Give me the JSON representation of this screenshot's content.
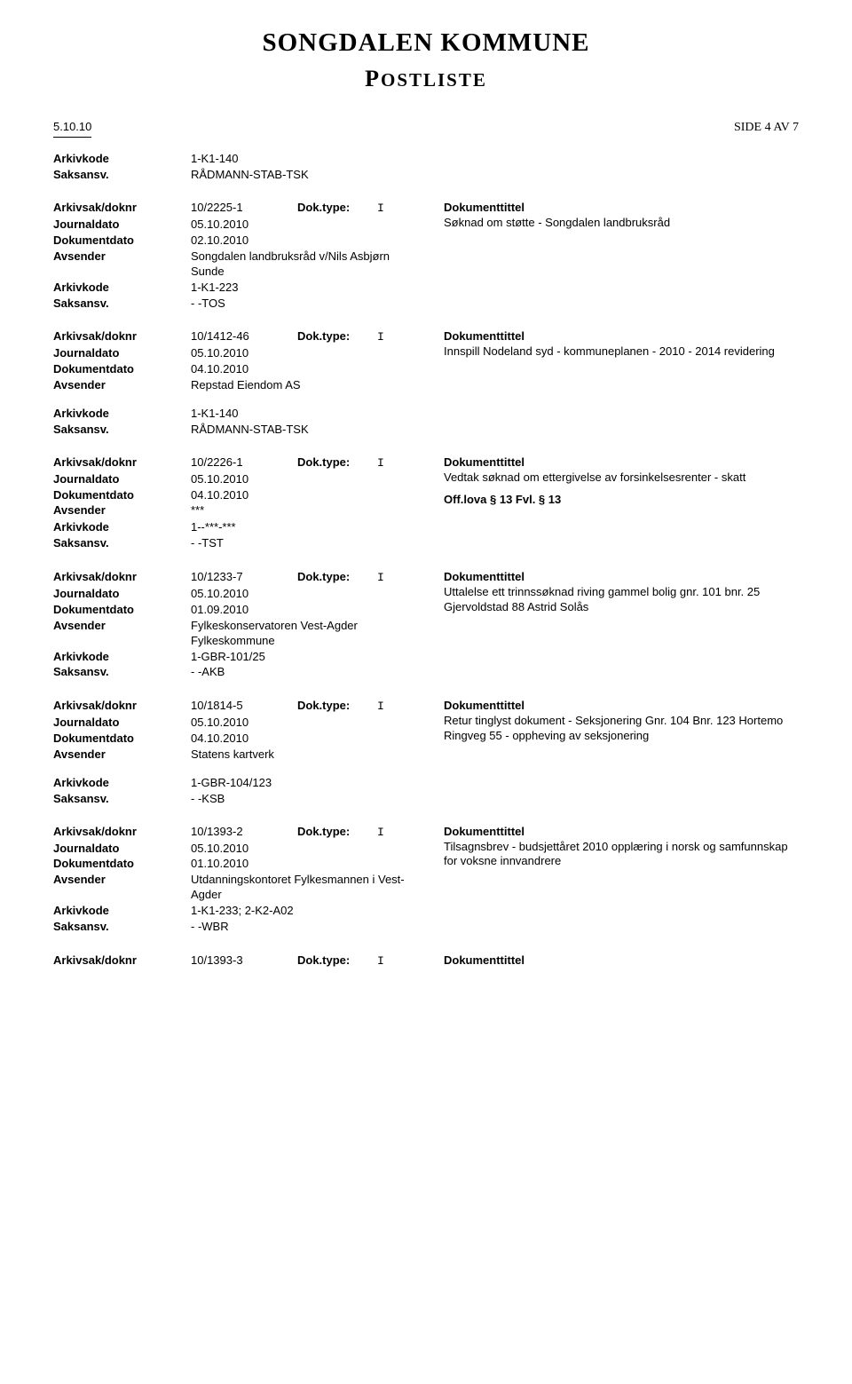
{
  "header": {
    "title": "SONGDALEN KOMMUNE",
    "subtitle_first": "P",
    "subtitle_rest": "OSTLISTE",
    "page_label": "SIDE 4 AV 7",
    "date": "5.10.10"
  },
  "records": [
    {
      "left": [
        {
          "label": "Arkivkode",
          "value": "1-K1-140"
        },
        {
          "label": "Saksansv.",
          "value": "RÅDMANN-STAB-TSK"
        }
      ],
      "standalone": true
    },
    {
      "left": [
        {
          "label": "Arkivsak/doknr",
          "value": "10/2225-1",
          "extra": "Dok.type:",
          "extra2": "I"
        },
        {
          "label": "Journaldato",
          "value": "05.10.2010"
        },
        {
          "label": "Dokumentdato",
          "value": "02.10.2010"
        },
        {
          "label": "Avsender",
          "value": "Songdalen landbruksråd v/Nils Asbjørn Sunde"
        },
        {
          "label": "Arkivkode",
          "value": "1-K1-223"
        },
        {
          "label": "Saksansv.",
          "value": "- -TOS"
        }
      ],
      "right": {
        "title": "Dokumenttittel",
        "text": "Søknad om støtte - Songdalen landbruksråd"
      }
    },
    {
      "left": [
        {
          "label": "Arkivsak/doknr",
          "value": "10/1412-46",
          "extra": "Dok.type:",
          "extra2": "I"
        },
        {
          "label": "Journaldato",
          "value": "05.10.2010"
        },
        {
          "label": "Dokumentdato",
          "value": "04.10.2010"
        },
        {
          "label": "Avsender",
          "value": "Repstad Eiendom AS"
        }
      ],
      "lower": [
        {
          "label": "Arkivkode",
          "value": "1-K1-140"
        },
        {
          "label": "Saksansv.",
          "value": "RÅDMANN-STAB-TSK"
        }
      ],
      "right": {
        "title": "Dokumenttittel",
        "text": "Innspill Nodeland syd - kommuneplanen - 2010 - 2014 revidering"
      }
    },
    {
      "left": [
        {
          "label": "Arkivsak/doknr",
          "value": "10/2226-1",
          "extra": "Dok.type:",
          "extra2": "I"
        },
        {
          "label": "Journaldato",
          "value": "05.10.2010"
        },
        {
          "label": "Dokumentdato",
          "value": "04.10.2010"
        },
        {
          "label": "Avsender",
          "value": "***"
        },
        {
          "label": "",
          "value": ""
        },
        {
          "label": "Arkivkode",
          "value": "1--***-***"
        },
        {
          "label": "Saksansv.",
          "value": "- -TST"
        }
      ],
      "right": {
        "title": "Dokumenttittel",
        "text": "Vedtak søknad om ettergivelse av forsinkelsesrenter - skatt",
        "offlova": "Off.lova § 13 Fvl. § 13"
      }
    },
    {
      "left": [
        {
          "label": "Arkivsak/doknr",
          "value": "10/1233-7",
          "extra": "Dok.type:",
          "extra2": "I"
        },
        {
          "label": "Journaldato",
          "value": "05.10.2010"
        },
        {
          "label": "Dokumentdato",
          "value": "01.09.2010"
        },
        {
          "label": "Avsender",
          "value": "Fylkeskonservatoren Vest-Agder Fylkeskommune"
        },
        {
          "label": "Arkivkode",
          "value": "1-GBR-101/25"
        },
        {
          "label": "Saksansv.",
          "value": "- -AKB"
        }
      ],
      "right": {
        "title": "Dokumenttittel",
        "text": "Uttalelse ett trinnssøknad riving gammel bolig gnr. 101 bnr. 25 Gjervoldstad 88 Astrid Solås"
      }
    },
    {
      "left": [
        {
          "label": "Arkivsak/doknr",
          "value": "10/1814-5",
          "extra": "Dok.type:",
          "extra2": "I"
        },
        {
          "label": "Journaldato",
          "value": "05.10.2010"
        },
        {
          "label": "Dokumentdato",
          "value": "04.10.2010"
        },
        {
          "label": "Avsender",
          "value": "Statens kartverk"
        }
      ],
      "lower": [
        {
          "label": "Arkivkode",
          "value": "1-GBR-104/123"
        },
        {
          "label": "Saksansv.",
          "value": "- -KSB"
        }
      ],
      "right": {
        "title": "Dokumenttittel",
        "text": "Retur tinglyst dokument - Seksjonering Gnr. 104 Bnr. 123 Hortemo Ringveg 55 - oppheving av seksjonering"
      }
    },
    {
      "left": [
        {
          "label": "Arkivsak/doknr",
          "value": "10/1393-2",
          "extra": "Dok.type:",
          "extra2": "I"
        },
        {
          "label": "Journaldato",
          "value": "05.10.2010"
        },
        {
          "label": "Dokumentdato",
          "value": "01.10.2010"
        },
        {
          "label": "Avsender",
          "value": "Utdanningskontoret Fylkesmannen i Vest-Agder"
        },
        {
          "label": "Arkivkode",
          "value": "1-K1-233; 2-K2-A02"
        },
        {
          "label": "Saksansv.",
          "value": "- -WBR"
        }
      ],
      "right": {
        "title": "Dokumenttittel",
        "text": "Tilsagnsbrev - budsjettåret 2010 opplæring i norsk og samfunnskap for voksne innvandrere"
      }
    },
    {
      "left": [
        {
          "label": "Arkivsak/doknr",
          "value": "10/1393-3",
          "extra": "Dok.type:",
          "extra2": "I"
        }
      ],
      "right": {
        "title": "Dokumenttittel",
        "text": ""
      },
      "last": true
    }
  ]
}
